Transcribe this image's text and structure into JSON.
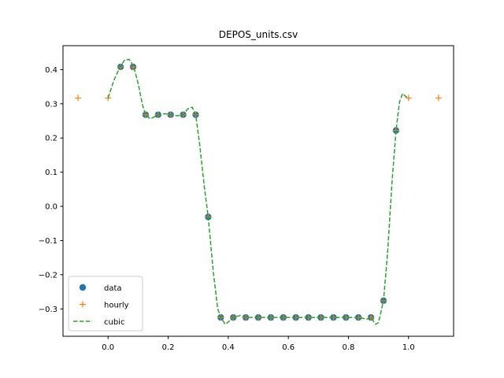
{
  "chart_data": {
    "type": "line",
    "title": "DEPOS_units.csv",
    "xlabel": "",
    "ylabel": "",
    "xlim": [
      -0.15,
      1.15
    ],
    "ylim": [
      -0.38,
      0.47
    ],
    "xticks": [
      0.0,
      0.2,
      0.4,
      0.6,
      0.8,
      1.0
    ],
    "xtick_labels": [
      "0.0",
      "0.2",
      "0.4",
      "0.6",
      "0.8",
      "1.0"
    ],
    "yticks": [
      -0.3,
      -0.2,
      -0.1,
      0.0,
      0.1,
      0.2,
      0.3,
      0.4
    ],
    "ytick_labels": [
      "−0.3",
      "−0.2",
      "−0.1",
      "0.0",
      "0.1",
      "0.2",
      "0.3",
      "0.4"
    ],
    "grid": false,
    "legend_position": "lower-left",
    "series": [
      {
        "name": "data",
        "style": "markers",
        "marker": "circle",
        "color": "#1f77b4",
        "x": [
          0.0417,
          0.0833,
          0.125,
          0.1667,
          0.2083,
          0.25,
          0.2917,
          0.3333,
          0.375,
          0.4167,
          0.4583,
          0.5,
          0.5417,
          0.5833,
          0.625,
          0.6667,
          0.7083,
          0.75,
          0.7917,
          0.8333,
          0.875,
          0.9167,
          0.9583
        ],
        "y": [
          0.408,
          0.408,
          0.268,
          0.268,
          0.268,
          0.268,
          0.268,
          -0.031,
          -0.325,
          -0.325,
          -0.325,
          -0.325,
          -0.325,
          -0.325,
          -0.325,
          -0.325,
          -0.325,
          -0.325,
          -0.325,
          -0.325,
          -0.325,
          -0.276,
          0.222
        ]
      },
      {
        "name": "hourly",
        "style": "markers",
        "marker": "plus",
        "color": "#ff7f0e",
        "x": [
          -0.1,
          0.0,
          0.0417,
          0.0833,
          0.125,
          0.1667,
          0.2083,
          0.25,
          0.2917,
          0.3333,
          0.375,
          0.4167,
          0.4583,
          0.5,
          0.5417,
          0.5833,
          0.625,
          0.6667,
          0.7083,
          0.75,
          0.7917,
          0.8333,
          0.875,
          0.9167,
          0.9583,
          1.0,
          1.1
        ],
        "y": [
          0.317,
          0.317,
          0.408,
          0.408,
          0.268,
          0.268,
          0.268,
          0.268,
          0.268,
          -0.031,
          -0.325,
          -0.325,
          -0.325,
          -0.325,
          -0.325,
          -0.325,
          -0.325,
          -0.325,
          -0.325,
          -0.325,
          -0.325,
          -0.325,
          -0.325,
          -0.276,
          0.222,
          0.317,
          0.317
        ]
      },
      {
        "name": "cubic",
        "style": "dashed-line",
        "color": "#2ca02c",
        "x": [
          0.0,
          0.02,
          0.04,
          0.055,
          0.07,
          0.085,
          0.1,
          0.115,
          0.125,
          0.14,
          0.155,
          0.1667,
          0.19,
          0.2083,
          0.23,
          0.25,
          0.265,
          0.28,
          0.2917,
          0.305,
          0.32,
          0.3333,
          0.35,
          0.365,
          0.375,
          0.39,
          0.4,
          0.4167,
          0.44,
          0.4583,
          0.5,
          0.55,
          0.6,
          0.65,
          0.7,
          0.75,
          0.8,
          0.8333,
          0.86,
          0.875,
          0.89,
          0.9,
          0.9167,
          0.93,
          0.945,
          0.9583,
          0.97,
          0.98,
          0.99,
          1.0
        ],
        "y": [
          0.317,
          0.37,
          0.408,
          0.428,
          0.43,
          0.41,
          0.36,
          0.295,
          0.268,
          0.256,
          0.262,
          0.268,
          0.271,
          0.268,
          0.265,
          0.268,
          0.285,
          0.29,
          0.268,
          0.18,
          0.06,
          -0.031,
          -0.19,
          -0.3,
          -0.325,
          -0.345,
          -0.338,
          -0.325,
          -0.319,
          -0.325,
          -0.325,
          -0.325,
          -0.325,
          -0.325,
          -0.325,
          -0.325,
          -0.325,
          -0.325,
          -0.33,
          -0.325,
          -0.345,
          -0.34,
          -0.276,
          -0.14,
          0.07,
          0.222,
          0.305,
          0.33,
          0.322,
          0.317
        ]
      }
    ]
  }
}
